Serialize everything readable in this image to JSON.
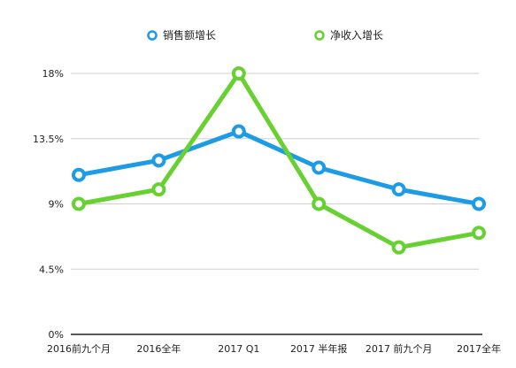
{
  "chart_data": {
    "type": "line",
    "title": "",
    "xlabel": "",
    "ylabel": "",
    "categories": [
      "2016前九个月",
      "2016全年",
      "2017 Q1",
      "2017  半年报",
      "2017 前九个月",
      "2017全年"
    ],
    "series": [
      {
        "name": "销售额增长",
        "color": "#1e9be5",
        "values": [
          11.0,
          12.0,
          14.0,
          11.5,
          10.0,
          9.0
        ]
      },
      {
        "name": "净收入增长",
        "color": "#66d130",
        "values": [
          9.0,
          10.0,
          18.0,
          9.0,
          6.0,
          7.0
        ]
      }
    ],
    "ylim": [
      0,
      18
    ],
    "yticks": [
      0,
      4.5,
      9,
      13.5,
      18
    ],
    "ytick_labels": [
      "0%",
      "4.5%",
      "9%",
      "13.5%",
      "18%"
    ],
    "grid": true,
    "legend_position": "top-center",
    "gridline_color": "#cfcfcf",
    "axis_color": "#222222"
  }
}
